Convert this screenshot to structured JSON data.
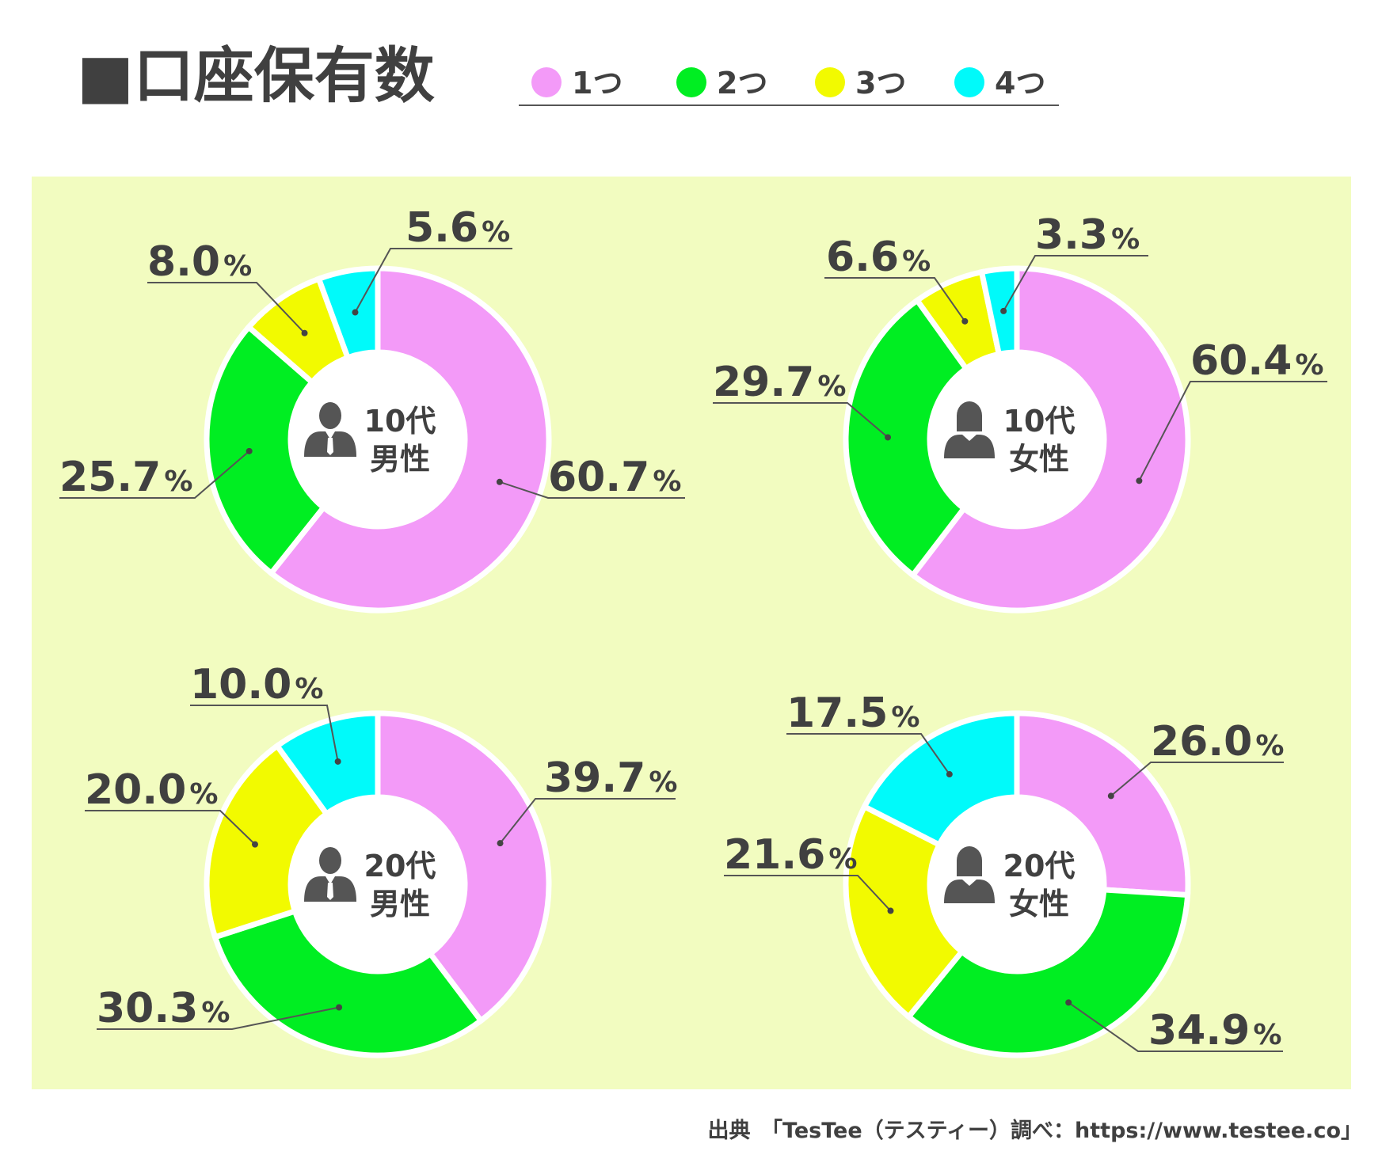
{
  "title": "■口座保有数",
  "legend": [
    {
      "label": "1つ",
      "color": "#F39AF8"
    },
    {
      "label": "2つ",
      "color": "#00EE22"
    },
    {
      "label": "3つ",
      "color": "#F2FA00"
    },
    {
      "label": "4つ",
      "color": "#00FAFA"
    }
  ],
  "colors": {
    "panel_background": "#F2FCC0",
    "leader_line": "#555555",
    "text": "#404040",
    "icon": "#555555"
  },
  "chart_data": [
    {
      "type": "pie",
      "group": [
        "10代",
        "男性"
      ],
      "icon": "man-icon",
      "categories": [
        "1つ",
        "2つ",
        "3つ",
        "4つ"
      ],
      "values": [
        60.7,
        25.7,
        8.0,
        5.6
      ],
      "labels": [
        "60.7",
        "25.7",
        "8.0",
        "5.6"
      ]
    },
    {
      "type": "pie",
      "group": [
        "10代",
        "女性"
      ],
      "icon": "woman-icon",
      "categories": [
        "1つ",
        "2つ",
        "3つ",
        "4つ"
      ],
      "values": [
        60.4,
        29.7,
        6.6,
        3.3
      ],
      "labels": [
        "60.4",
        "29.7",
        "6.6",
        "3.3"
      ]
    },
    {
      "type": "pie",
      "group": [
        "20代",
        "男性"
      ],
      "icon": "man-icon",
      "categories": [
        "1つ",
        "2つ",
        "3つ",
        "4つ"
      ],
      "values": [
        39.7,
        30.3,
        20.0,
        10.0
      ],
      "labels": [
        "39.7",
        "30.3",
        "20.0",
        "10.0"
      ]
    },
    {
      "type": "pie",
      "group": [
        "20代",
        "女性"
      ],
      "icon": "woman-icon",
      "categories": [
        "1つ",
        "2つ",
        "3つ",
        "4つ"
      ],
      "values": [
        26.0,
        34.9,
        21.6,
        17.5
      ],
      "labels": [
        "26.0",
        "34.9",
        "21.6",
        "17.5"
      ]
    }
  ],
  "percent_symbol": "%",
  "source": "出典　「TesTee（テスティー）調べ：https://www.testee.co」"
}
